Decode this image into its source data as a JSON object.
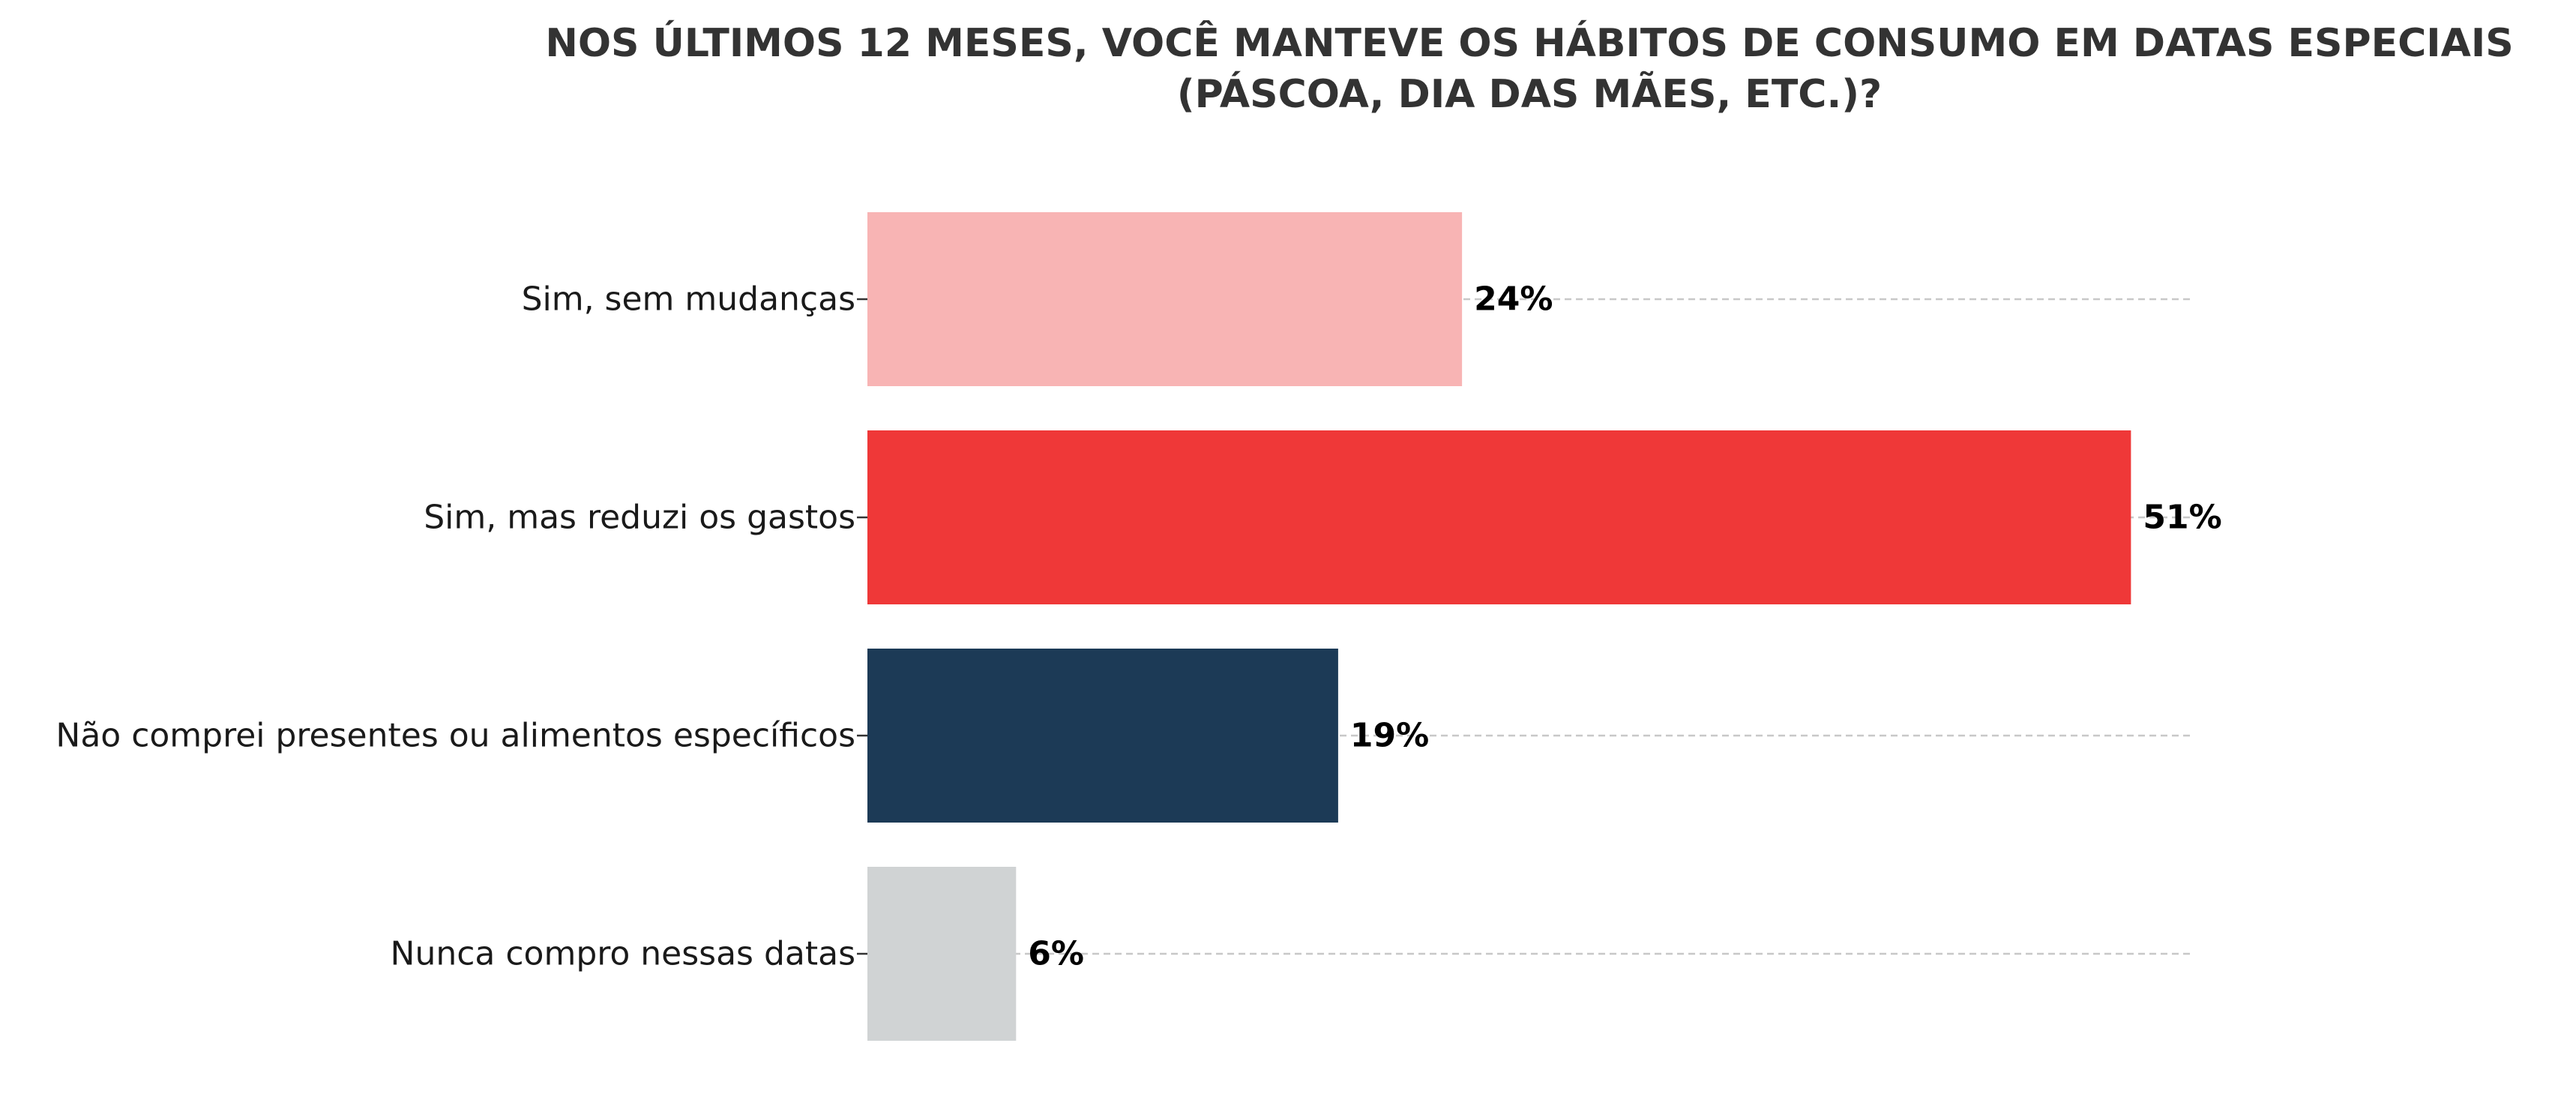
{
  "chart_data": {
    "type": "bar",
    "orientation": "horizontal",
    "title_lines": [
      "NOS ÚLTIMOS 12 MESES, VOCÊ MANTEVE OS HÁBITOS DE CONSUMO EM DATAS ESPECIAIS",
      "(PÁSCOA, DIA DAS MÃES, ETC.)?"
    ],
    "categories": [
      "Sim, sem mudanças",
      "Sim, mas reduzi os gastos",
      "Não comprei presentes ou alimentos específicos",
      "Nunca compro nessas datas"
    ],
    "values": [
      24,
      51,
      19,
      6
    ],
    "value_labels": [
      "24%",
      "51%",
      "19%",
      "6%"
    ],
    "colors": [
      "#f8b4b4",
      "#ef3838",
      "#1c3a56",
      "#d0d3d4"
    ],
    "xlim": [
      0,
      53.5
    ],
    "grid": true,
    "grid_axis": "y",
    "legend": "none"
  }
}
